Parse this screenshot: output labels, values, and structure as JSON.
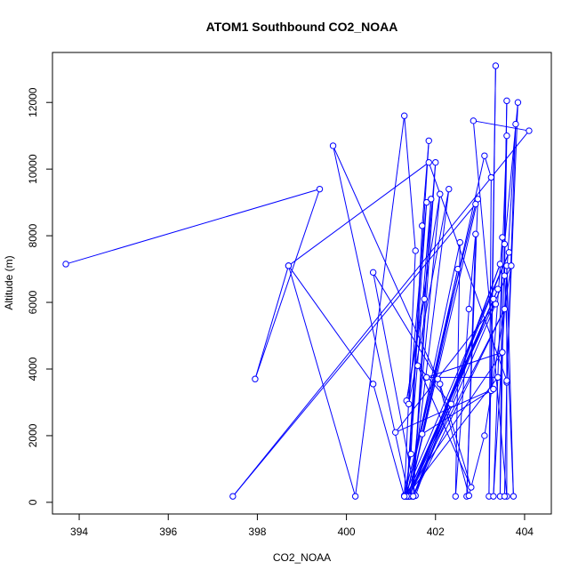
{
  "chart_data": {
    "type": "line",
    "title": "ATOM1 Southbound CO2_NOAA",
    "xlabel": "CO2_NOAA",
    "ylabel": "Altitude (m)",
    "xlim": [
      393.4,
      404.6
    ],
    "ylim": [
      -350,
      13500
    ],
    "x_ticks": [
      394,
      396,
      398,
      400,
      402,
      404
    ],
    "y_ticks": [
      0,
      2000,
      4000,
      6000,
      8000,
      10000,
      12000
    ],
    "grid": false,
    "legend": "none",
    "marker": "open-circle",
    "color": "#0000ff",
    "series": [
      {
        "points": [
          [
            393.7,
            7150
          ],
          [
            399.4,
            9400
          ],
          [
            397.95,
            3700
          ],
          [
            398.7,
            7100
          ],
          [
            400.2,
            180
          ],
          [
            401.3,
            11600
          ],
          [
            401.55,
            7550
          ],
          [
            401.3,
            200
          ],
          [
            401.45,
            1450
          ],
          [
            401.7,
            8300
          ],
          [
            401.85,
            10850
          ],
          [
            401.35,
            180
          ],
          [
            401.9,
            9100
          ],
          [
            401.5,
            180
          ],
          [
            402.0,
            10200
          ],
          [
            401.75,
            6100
          ],
          [
            401.35,
            3050
          ],
          [
            402.1,
            9250
          ],
          [
            401.45,
            180
          ],
          [
            402.3,
            9400
          ],
          [
            401.4,
            2950
          ],
          [
            401.8,
            9000
          ],
          [
            401.35,
            180
          ],
          [
            402.55,
            7800
          ],
          [
            402.45,
            180
          ],
          [
            402.75,
            5800
          ],
          [
            402.9,
            8050
          ],
          [
            402.7,
            180
          ],
          [
            402.95,
            9100
          ],
          [
            401.4,
            180
          ],
          [
            399.7,
            10700
          ],
          [
            402.1,
            3550
          ],
          [
            402.8,
            450
          ],
          [
            401.6,
            4100
          ],
          [
            402.35,
            2950
          ],
          [
            401.4,
            180
          ],
          [
            403.1,
            10400
          ],
          [
            403.25,
            9750
          ],
          [
            403.2,
            180
          ],
          [
            403.35,
            13100
          ],
          [
            403.25,
            3350
          ],
          [
            403.5,
            7950
          ],
          [
            403.45,
            180
          ],
          [
            403.6,
            12050
          ],
          [
            403.55,
            7750
          ],
          [
            403.85,
            12000
          ],
          [
            403.6,
            3600
          ],
          [
            403.8,
            11350
          ],
          [
            403.3,
            180
          ],
          [
            403.6,
            11000
          ],
          [
            403.55,
            6800
          ],
          [
            403.75,
            180
          ],
          [
            403.6,
            7100
          ],
          [
            403.6,
            180
          ],
          [
            402.85,
            11450
          ],
          [
            404.1,
            11150
          ],
          [
            397.45,
            180
          ],
          [
            402.9,
            8950
          ],
          [
            401.3,
            180
          ],
          [
            403.65,
            7500
          ],
          [
            401.4,
            180
          ],
          [
            403.55,
            5800
          ],
          [
            401.5,
            180
          ],
          [
            403.45,
            7150
          ],
          [
            401.55,
            200
          ],
          [
            400.6,
            6900
          ],
          [
            402.05,
            3700
          ],
          [
            402.75,
            200
          ],
          [
            403.1,
            2000
          ],
          [
            403.7,
            7100
          ],
          [
            401.35,
            180
          ],
          [
            403.4,
            6400
          ],
          [
            401.4,
            180
          ],
          [
            403.3,
            6100
          ],
          [
            401.5,
            180
          ],
          [
            403.35,
            5950
          ],
          [
            401.1,
            2100
          ],
          [
            403.3,
            3400
          ],
          [
            401.7,
            2050
          ],
          [
            402.5,
            7000
          ],
          [
            401.35,
            180
          ],
          [
            403.4,
            3750
          ],
          [
            401.8,
            3750
          ],
          [
            403.5,
            4500
          ],
          [
            401.3,
            180
          ],
          [
            400.6,
            3550
          ],
          [
            398.7,
            7100
          ],
          [
            401.85,
            10200
          ],
          [
            403.6,
            3650
          ],
          [
            403.55,
            180
          ]
        ]
      }
    ]
  }
}
